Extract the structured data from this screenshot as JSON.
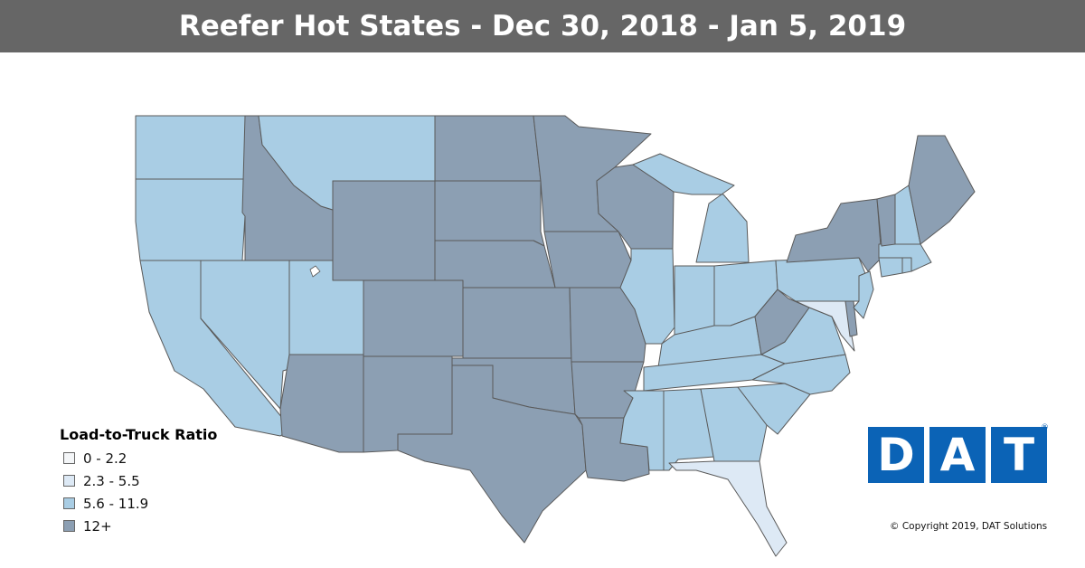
{
  "title": "Reefer Hot States - Dec 30, 2018 - Jan 5, 2019",
  "colors": {
    "title_bar": "#666666",
    "range_0_2_2": "#f4f6f8",
    "range_2_3_5_5": "#dde9f5",
    "range_5_6_11_9": "#a9cde4",
    "range_12_plus": "#8c9fb3",
    "state_border": "#5a5a5a",
    "logo_blue": "#0b63b6"
  },
  "legend": {
    "title": "Load-to-Truck Ratio",
    "items": [
      {
        "label": "0 - 2.2",
        "color": "#f4f6f8"
      },
      {
        "label": "2.3 - 5.5",
        "color": "#dde9f5"
      },
      {
        "label": "5.6 - 11.9",
        "color": "#a9cde4"
      },
      {
        "label": "12+",
        "color": "#8c9fb3"
      }
    ]
  },
  "logo": {
    "letters": [
      "D",
      "A",
      "T"
    ],
    "registered": "®"
  },
  "copyright": "© Copyright 2019, DAT Solutions",
  "states": [
    {
      "name": "WA",
      "range": 2
    },
    {
      "name": "OR",
      "range": 2
    },
    {
      "name": "CA",
      "range": 2
    },
    {
      "name": "NV",
      "range": 2
    },
    {
      "name": "ID",
      "range": 3
    },
    {
      "name": "MT",
      "range": 2
    },
    {
      "name": "WY",
      "range": 3
    },
    {
      "name": "UT",
      "range": 2
    },
    {
      "name": "AZ",
      "range": 3
    },
    {
      "name": "CO",
      "range": 3
    },
    {
      "name": "NM",
      "range": 3
    },
    {
      "name": "ND",
      "range": 3
    },
    {
      "name": "SD",
      "range": 3
    },
    {
      "name": "NE",
      "range": 3
    },
    {
      "name": "KS",
      "range": 3
    },
    {
      "name": "OK",
      "range": 3
    },
    {
      "name": "TX",
      "range": 3
    },
    {
      "name": "MN",
      "range": 3
    },
    {
      "name": "IA",
      "range": 3
    },
    {
      "name": "MO",
      "range": 3
    },
    {
      "name": "AR",
      "range": 3
    },
    {
      "name": "LA",
      "range": 3
    },
    {
      "name": "WI",
      "range": 3
    },
    {
      "name": "IL",
      "range": 2
    },
    {
      "name": "MI",
      "range": 2
    },
    {
      "name": "IN",
      "range": 2
    },
    {
      "name": "OH",
      "range": 2
    },
    {
      "name": "KY",
      "range": 2
    },
    {
      "name": "TN",
      "range": 2
    },
    {
      "name": "MS",
      "range": 2
    },
    {
      "name": "AL",
      "range": 2
    },
    {
      "name": "GA",
      "range": 2
    },
    {
      "name": "FL",
      "range": 1
    },
    {
      "name": "SC",
      "range": 2
    },
    {
      "name": "NC",
      "range": 2
    },
    {
      "name": "VA",
      "range": 2
    },
    {
      "name": "WV",
      "range": 3
    },
    {
      "name": "MD",
      "range": 1
    },
    {
      "name": "DE",
      "range": 3
    },
    {
      "name": "PA",
      "range": 2
    },
    {
      "name": "NJ",
      "range": 2
    },
    {
      "name": "NY",
      "range": 3
    },
    {
      "name": "CT",
      "range": 2
    },
    {
      "name": "RI",
      "range": 2
    },
    {
      "name": "MA",
      "range": 2
    },
    {
      "name": "VT",
      "range": 3
    },
    {
      "name": "NH",
      "range": 2
    },
    {
      "name": "ME",
      "range": 3
    }
  ]
}
